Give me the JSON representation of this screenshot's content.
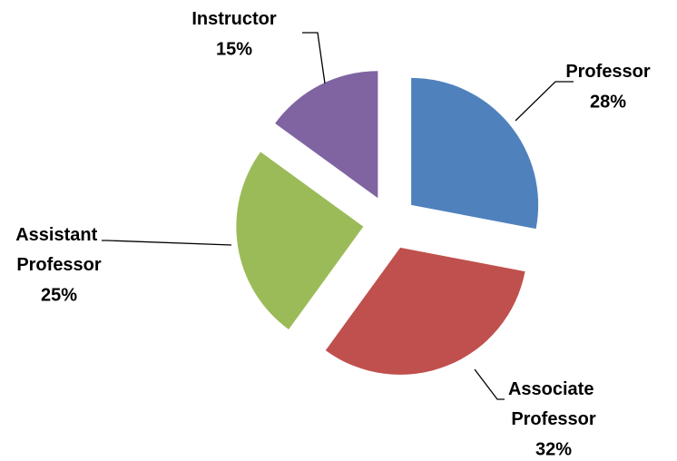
{
  "chart_data": {
    "type": "pie",
    "categories": [
      "Professor",
      "Associate Professor",
      "Assistant Professor",
      "Instructor"
    ],
    "values": [
      28,
      32,
      25,
      15
    ],
    "value_labels": [
      "28%",
      "32%",
      "25%",
      "15%"
    ],
    "colors": [
      "#4f81bd",
      "#c0504d",
      "#9bbb59",
      "#8064a2"
    ]
  }
}
